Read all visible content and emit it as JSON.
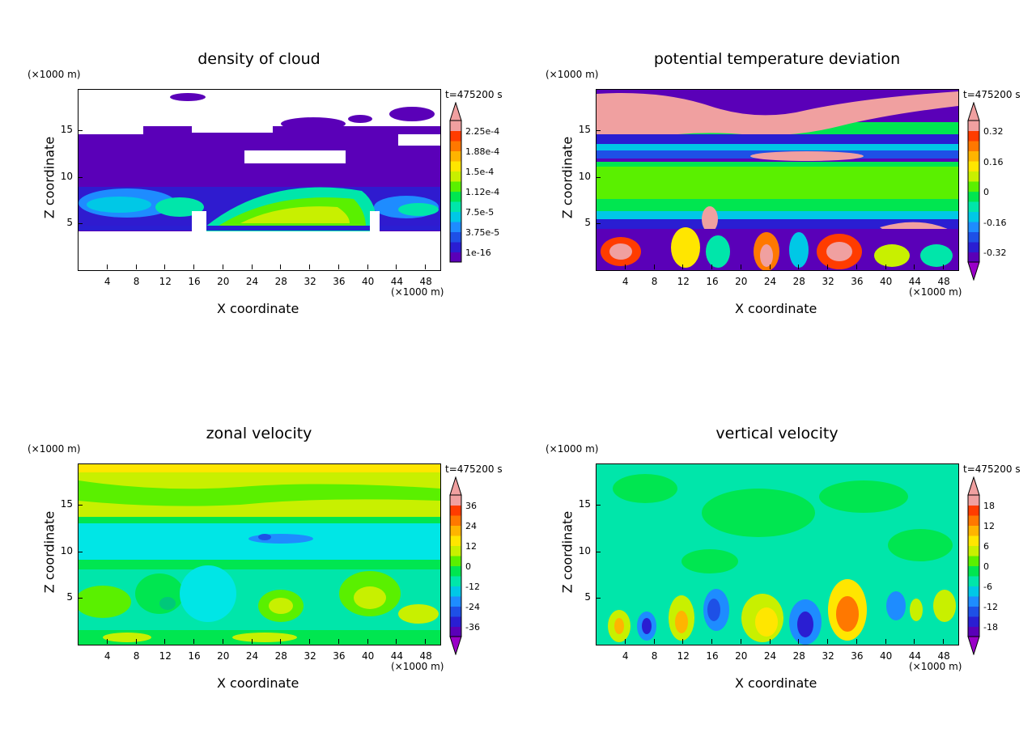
{
  "shared": {
    "x_unit": "(×1000 m)",
    "y_unit": "(×1000 m)",
    "xlabel": "X coordinate",
    "ylabel": "Z coordinate",
    "time": "t=475200 s"
  },
  "chart_data": [
    {
      "type": "heatmap",
      "title": "density of cloud",
      "xlabel": "X coordinate",
      "ylabel": "Z coordinate",
      "x_unit": "(×1000 m)",
      "y_unit": "(×1000 m)",
      "time_label": "t=475200 s",
      "xlim": [
        0,
        50
      ],
      "ylim": [
        0,
        19.5
      ],
      "xticks": [
        4,
        8,
        12,
        16,
        20,
        24,
        28,
        32,
        36,
        40,
        44,
        48
      ],
      "yticks": [
        5,
        10,
        15
      ],
      "colorbar": {
        "labels": [
          "2.25e-4",
          "1.88e-4",
          "1.5e-4",
          "1.12e-4",
          "7.5e-5",
          "3.75e-5",
          "1e-16"
        ],
        "colors": [
          "#5a00b8",
          "#2a1ed2",
          "#1e50e6",
          "#1e8cff",
          "#00c8e6",
          "#00e6aa",
          "#00e650",
          "#5af000",
          "#c8f000",
          "#ffe600",
          "#ffb400",
          "#ff7800",
          "#ff3c00",
          "#f0a0a0"
        ],
        "min_arrow": false,
        "max_arrow": true
      }
    },
    {
      "type": "heatmap",
      "title": "potential temperature deviation",
      "xlabel": "X coordinate",
      "ylabel": "Z coordinate",
      "x_unit": "(×1000 m)",
      "y_unit": "(×1000 m)",
      "time_label": "t=475200 s",
      "xlim": [
        0,
        50
      ],
      "ylim": [
        0,
        19.5
      ],
      "xticks": [
        4,
        8,
        12,
        16,
        20,
        24,
        28,
        32,
        36,
        40,
        44,
        48
      ],
      "yticks": [
        5,
        10,
        15
      ],
      "colorbar": {
        "labels": [
          "0.32",
          "0.16",
          "0",
          "-0.16",
          "-0.32"
        ],
        "colors": [
          "#5a00b8",
          "#2a1ed2",
          "#1e50e6",
          "#1e8cff",
          "#00c8e6",
          "#00e6aa",
          "#00e650",
          "#5af000",
          "#c8f000",
          "#ffe600",
          "#ffb400",
          "#ff7800",
          "#ff3c00",
          "#f0a0a0"
        ],
        "min_arrow": true,
        "max_arrow": true
      }
    },
    {
      "type": "heatmap",
      "title": "zonal velocity",
      "xlabel": "X coordinate",
      "ylabel": "Z coordinate",
      "x_unit": "(×1000 m)",
      "y_unit": "(×1000 m)",
      "time_label": "t=475200 s",
      "xlim": [
        0,
        50
      ],
      "ylim": [
        0,
        19.5
      ],
      "xticks": [
        4,
        8,
        12,
        16,
        20,
        24,
        28,
        32,
        36,
        40,
        44,
        48
      ],
      "yticks": [
        5,
        10,
        15
      ],
      "colorbar": {
        "labels": [
          "36",
          "24",
          "12",
          "0",
          "-12",
          "-24",
          "-36"
        ],
        "colors": [
          "#5a00b8",
          "#2a1ed2",
          "#1e50e6",
          "#1e8cff",
          "#00c8e6",
          "#00e6aa",
          "#00e650",
          "#5af000",
          "#c8f000",
          "#ffe600",
          "#ffb400",
          "#ff7800",
          "#ff3c00",
          "#f0a0a0"
        ],
        "min_arrow": true,
        "max_arrow": true
      }
    },
    {
      "type": "heatmap",
      "title": "vertical velocity",
      "xlabel": "X coordinate",
      "ylabel": "Z coordinate",
      "x_unit": "(×1000 m)",
      "y_unit": "(×1000 m)",
      "time_label": "t=475200 s",
      "xlim": [
        0,
        50
      ],
      "ylim": [
        0,
        19.5
      ],
      "xticks": [
        4,
        8,
        12,
        16,
        20,
        24,
        28,
        32,
        36,
        40,
        44,
        48
      ],
      "yticks": [
        5,
        10,
        15
      ],
      "colorbar": {
        "labels": [
          "18",
          "12",
          "6",
          "0",
          "-6",
          "-12",
          "-18"
        ],
        "colors": [
          "#5a00b8",
          "#2a1ed2",
          "#1e50e6",
          "#1e8cff",
          "#00c8e6",
          "#00e6aa",
          "#00e650",
          "#5af000",
          "#c8f000",
          "#ffe600",
          "#ffb400",
          "#ff7800",
          "#ff3c00",
          "#f0a0a0"
        ],
        "min_arrow": true,
        "max_arrow": true
      }
    }
  ]
}
